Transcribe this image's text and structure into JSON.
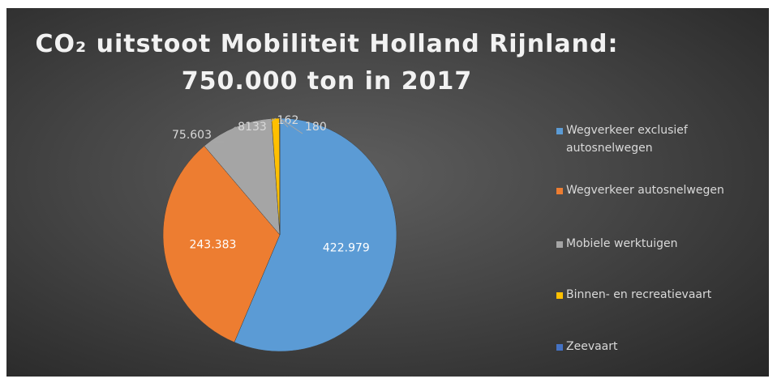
{
  "chart_data": {
    "type": "pie",
    "title": [
      "CO₂ uitstoot  Mobiliteit Holland Rijnland:",
      "750.000 ton in 2017"
    ],
    "categories": [
      "Wegverkeer exclusief autosnelwegen",
      "Wegverkeer autosnelwegen",
      "Mobiele werktuigen",
      "Binnen- en recreatievaart",
      "Zeevaart",
      null
    ],
    "values": [
      422979,
      243383,
      75603,
      8133,
      162,
      180
    ],
    "value_labels": [
      "422.979",
      "243.383",
      "75.603",
      "8133",
      "162",
      "180"
    ],
    "colors": [
      "#5b9bd5",
      "#ed7d31",
      "#a5a5a5",
      "#ffc000",
      "#4472c4",
      "#70ad47"
    ],
    "legend": "right"
  }
}
